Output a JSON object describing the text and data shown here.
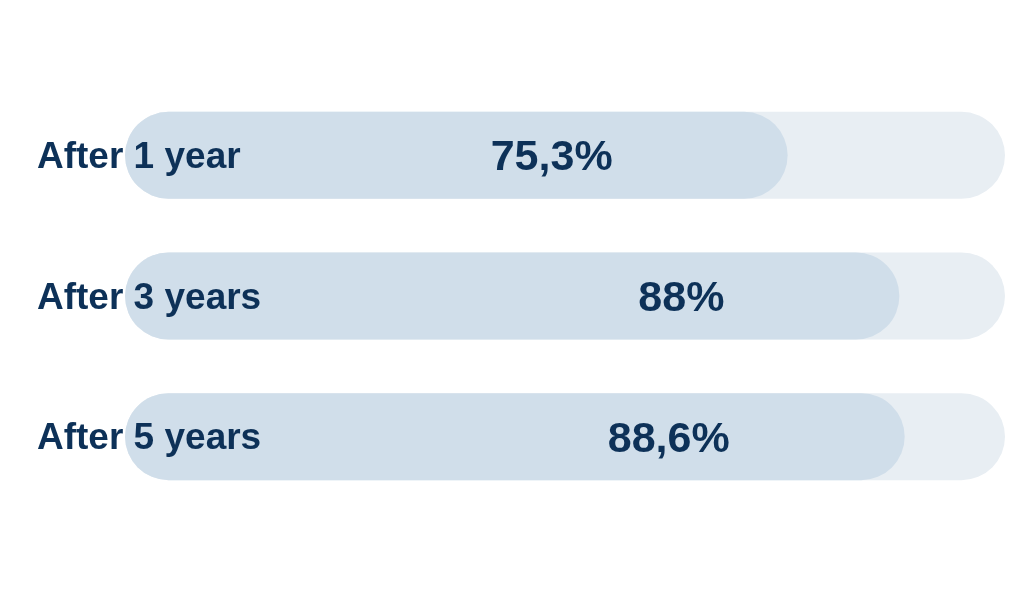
{
  "chart_data": {
    "type": "bar",
    "orientation": "horizontal",
    "categories": [
      "After 1 year",
      "After 3 years",
      "After 5 years"
    ],
    "values": [
      75.3,
      88,
      88.6
    ],
    "value_labels": [
      "75,3%",
      "88%",
      "88,6%"
    ],
    "color": "#d0deea",
    "xlim": [
      0,
      100
    ]
  }
}
